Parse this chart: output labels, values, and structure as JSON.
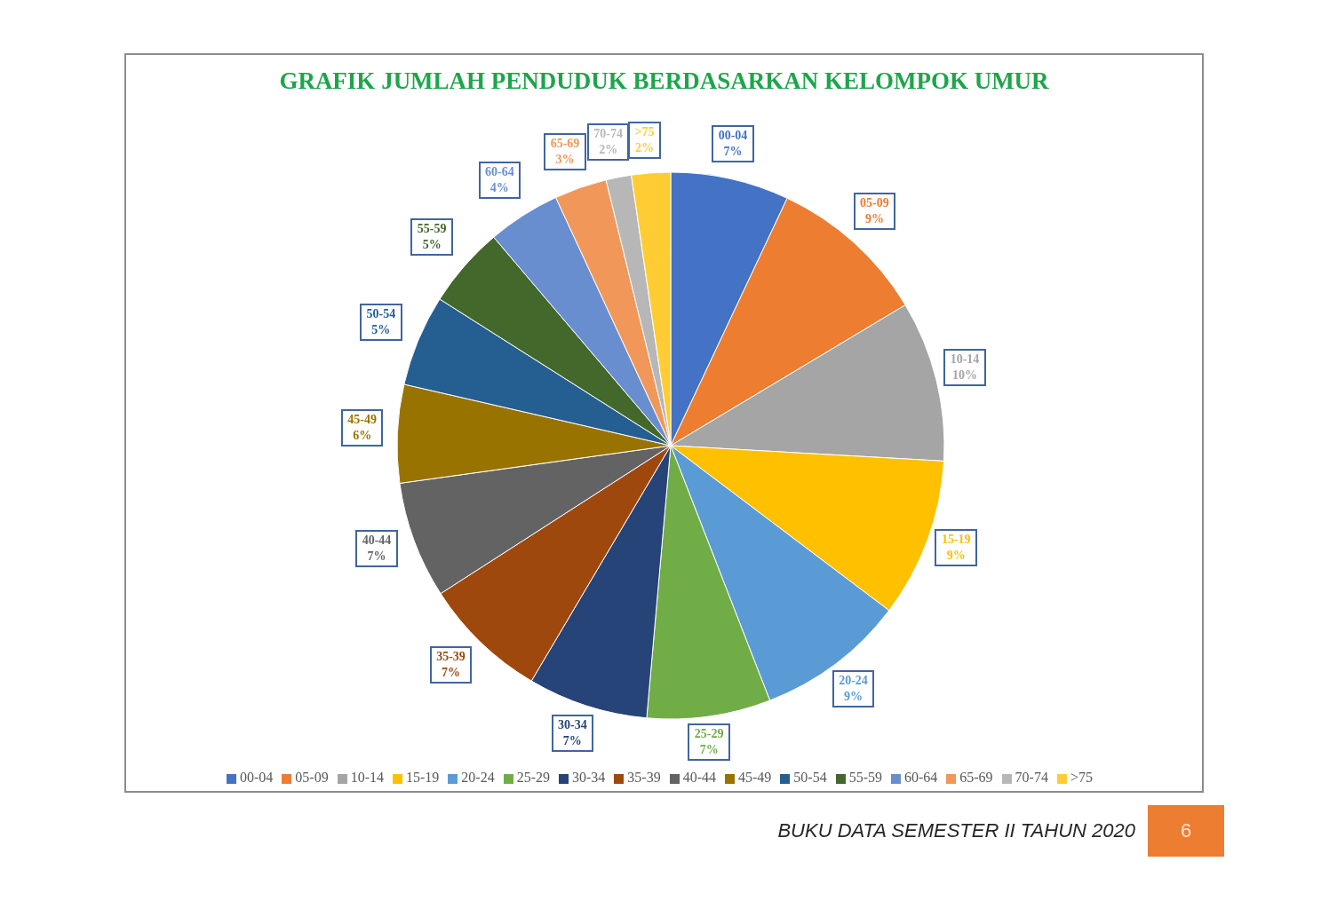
{
  "chart_data": {
    "type": "pie",
    "title": "GRAFIK JUMLAH PENDUDUK BERDASARKAN KELOMPOK UMUR",
    "categories": [
      "00-04",
      "05-09",
      "10-14",
      "15-19",
      "20-24",
      "25-29",
      "30-34",
      "35-39",
      "40-44",
      "45-49",
      "50-54",
      "55-59",
      "60-64",
      "65-69",
      "70-74",
      ">75"
    ],
    "values": [
      7.0,
      9.4,
      9.5,
      9.4,
      8.8,
      7.3,
      7.1,
      7.4,
      6.9,
      5.8,
      5.4,
      4.8,
      4.3,
      3.1,
      1.5,
      2.3
    ],
    "colors": [
      "#4472c4",
      "#ed7d31",
      "#a5a5a5",
      "#ffc000",
      "#5b9bd5",
      "#70ad47",
      "#264478",
      "#9e480e",
      "#636363",
      "#997300",
      "#255e91",
      "#43682b",
      "#698ed0",
      "#f1975a",
      "#b7b7b7",
      "#ffcd33"
    ],
    "value_labels": [
      "7%",
      "9%",
      "10%",
      "9%",
      "9%",
      "7%",
      "7%",
      "7%",
      "7%",
      "6%",
      "5%",
      "5%",
      "4%",
      "3%",
      "2%",
      "2%"
    ],
    "legend": "bottom",
    "annotations": [
      "BUKU DATA SEMESTER II TAHUN 2020",
      "6"
    ]
  }
}
